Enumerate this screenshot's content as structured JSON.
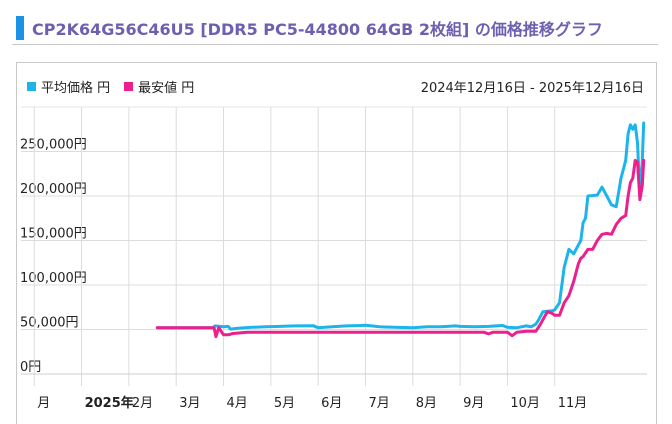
{
  "title": "CP2K64G56C46U5 [DDR5 PC5-44800 64GB 2枚組] の価格推移グラフ",
  "legend": {
    "avg_label": "平均価格 円",
    "min_label": "最安値 円"
  },
  "date_range": "2024年12月16日 - 2025年12月16日",
  "colors": {
    "avg": "#1cb4ea",
    "min": "#ec1f8c",
    "accent": "#1a93e6",
    "title": "#6f5fb0"
  },
  "chart_data": {
    "type": "line",
    "title": "CP2K64G56C46U5 [DDR5 PC5-44800 64GB 2枚組] の価格推移グラフ",
    "xlabel": "",
    "ylabel": "",
    "ylim": [
      0,
      300000
    ],
    "yticks": [
      0,
      50000,
      100000,
      150000,
      200000,
      250000
    ],
    "ytick_labels": [
      "0円",
      "50,000円",
      "100,000円",
      "150,000円",
      "200,000円",
      "250,000円"
    ],
    "xticks": [
      {
        "label": "月",
        "bold": false
      },
      {
        "label": "2025年",
        "bold": true
      },
      {
        "label": "2月",
        "bold": false
      },
      {
        "label": "3月",
        "bold": false
      },
      {
        "label": "4月",
        "bold": false
      },
      {
        "label": "5月",
        "bold": false
      },
      {
        "label": "6月",
        "bold": false
      },
      {
        "label": "7月",
        "bold": false
      },
      {
        "label": "8月",
        "bold": false
      },
      {
        "label": "9月",
        "bold": false
      },
      {
        "label": "10月",
        "bold": false
      },
      {
        "label": "11月",
        "bold": false
      }
    ],
    "x_unit": "months since start of 2025",
    "grid": true,
    "legend_position": "top-left",
    "series": [
      {
        "name": "平均価格 円",
        "color": "#1cb4ea",
        "x": [
          1.6,
          2.2,
          2.78,
          2.82,
          3.0,
          3.1,
          3.15,
          3.3,
          3.6,
          3.9,
          4.2,
          4.5,
          4.9,
          5.0,
          5.3,
          5.6,
          5.9,
          6.0,
          6.3,
          6.6,
          7.0,
          7.3,
          7.6,
          7.9,
          8.0,
          8.3,
          8.6,
          8.9,
          9.0,
          9.2,
          9.4,
          9.5,
          9.6,
          9.65,
          9.75,
          9.85,
          9.95,
          10.0,
          10.1,
          10.2,
          10.3,
          10.4,
          10.5,
          10.55,
          10.6,
          10.65,
          10.7,
          10.8,
          10.9,
          11.0,
          11.1,
          11.2,
          11.3,
          11.4,
          11.5,
          11.55,
          11.6,
          11.65,
          11.7,
          11.75,
          11.8,
          11.85,
          11.88
        ],
        "y": [
          52000,
          52000,
          52000,
          54000,
          53000,
          53500,
          50500,
          51500,
          52500,
          53000,
          53500,
          54000,
          54200,
          52000,
          53000,
          54000,
          54500,
          54800,
          53000,
          52500,
          52000,
          53000,
          53000,
          54000,
          53500,
          53000,
          53500,
          54500,
          52500,
          52000,
          54000,
          53000,
          56000,
          60000,
          70000,
          70500,
          71000,
          72000,
          80000,
          120000,
          140000,
          135000,
          145000,
          150000,
          170000,
          175000,
          200000,
          200500,
          201000,
          210000,
          200000,
          190000,
          188000,
          220000,
          240000,
          270000,
          280000,
          275000,
          280000,
          260000,
          200000,
          240000,
          282000
        ]
      },
      {
        "name": "最安値 円",
        "color": "#ec1f8c",
        "x": [
          1.6,
          2.2,
          2.8,
          2.84,
          2.9,
          3.0,
          3.1,
          3.2,
          3.5,
          4.0,
          4.5,
          5.0,
          5.5,
          6.0,
          6.5,
          7.0,
          7.5,
          8.0,
          8.5,
          8.6,
          8.7,
          9.0,
          9.1,
          9.2,
          9.4,
          9.6,
          9.7,
          9.8,
          9.85,
          9.95,
          10.0,
          10.1,
          10.2,
          10.3,
          10.4,
          10.5,
          10.55,
          10.6,
          10.7,
          10.8,
          10.9,
          11.0,
          11.1,
          11.2,
          11.3,
          11.4,
          11.5,
          11.55,
          11.6,
          11.65,
          11.7,
          11.75,
          11.8,
          11.85,
          11.88
        ],
        "y": [
          52000,
          52000,
          52000,
          42000,
          52000,
          44000,
          44000,
          45500,
          47000,
          47000,
          47000,
          47000,
          47000,
          47000,
          47000,
          47000,
          47000,
          47000,
          47000,
          45000,
          47000,
          47000,
          43000,
          47000,
          48000,
          48000,
          56000,
          66000,
          70000,
          68000,
          66000,
          66000,
          80000,
          88000,
          104000,
          124000,
          130000,
          132000,
          140000,
          140000,
          150000,
          157000,
          158000,
          157000,
          168000,
          175000,
          178000,
          200000,
          215000,
          220000,
          240000,
          238000,
          196000,
          212000,
          240000
        ]
      }
    ]
  }
}
